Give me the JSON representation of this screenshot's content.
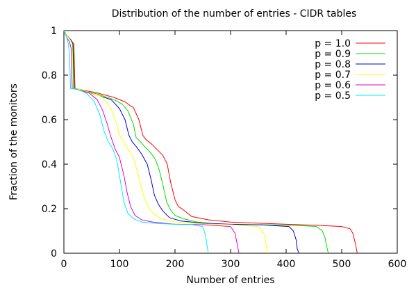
{
  "chart_data": {
    "type": "line",
    "title": "Distribution of the number of entries - CIDR tables",
    "xlabel": "Number of entries",
    "ylabel": "Fraction of the monitors",
    "xlim": [
      0,
      600
    ],
    "ylim": [
      0,
      1
    ],
    "xticks": [
      0,
      100,
      200,
      300,
      400,
      500,
      600
    ],
    "yticks": [
      0,
      0.2,
      0.4,
      0.6,
      0.8,
      1
    ],
    "xtick_labels": [
      "0",
      "100",
      "200",
      "300",
      "400",
      "500",
      "600"
    ],
    "ytick_labels": [
      "0",
      "0.2",
      "0.4",
      "0.6",
      "0.8",
      "1"
    ],
    "grid": false,
    "legend_position": "top-right",
    "series": [
      {
        "name": "p = 1.0",
        "color": "#ff0000",
        "x": [
          0,
          5,
          12,
          18,
          20,
          30,
          60,
          90,
          110,
          118,
          125,
          135,
          142,
          148,
          158,
          168,
          178,
          186,
          192,
          200,
          206,
          215,
          230,
          260,
          300,
          400,
          460,
          500,
          515,
          520,
          525,
          528
        ],
        "y": [
          1.0,
          0.98,
          0.96,
          0.94,
          0.74,
          0.735,
          0.72,
          0.7,
          0.68,
          0.665,
          0.655,
          0.6,
          0.53,
          0.51,
          0.49,
          0.465,
          0.44,
          0.4,
          0.32,
          0.24,
          0.21,
          0.195,
          0.165,
          0.15,
          0.14,
          0.13,
          0.125,
          0.12,
          0.11,
          0.09,
          0.04,
          0.0
        ]
      },
      {
        "name": "p = 0.9",
        "color": "#00dd00",
        "x": [
          0,
          5,
          12,
          17,
          19,
          30,
          60,
          90,
          105,
          115,
          125,
          130,
          138,
          145,
          155,
          165,
          172,
          178,
          185,
          193,
          200,
          215,
          240,
          280,
          350,
          420,
          455,
          465,
          470,
          473,
          476
        ],
        "y": [
          1.0,
          0.98,
          0.96,
          0.94,
          0.74,
          0.735,
          0.715,
          0.69,
          0.67,
          0.64,
          0.58,
          0.52,
          0.5,
          0.48,
          0.455,
          0.42,
          0.37,
          0.31,
          0.23,
          0.19,
          0.17,
          0.155,
          0.14,
          0.13,
          0.128,
          0.125,
          0.12,
          0.1,
          0.07,
          0.03,
          0.0
        ]
      },
      {
        "name": "p = 0.8",
        "color": "#0000cc",
        "x": [
          0,
          5,
          12,
          16,
          18,
          30,
          60,
          85,
          100,
          110,
          117,
          123,
          130,
          140,
          150,
          157,
          163,
          170,
          178,
          190,
          210,
          250,
          300,
          360,
          405,
          413,
          418,
          420,
          423
        ],
        "y": [
          1.0,
          0.98,
          0.96,
          0.94,
          0.74,
          0.735,
          0.71,
          0.69,
          0.65,
          0.6,
          0.53,
          0.5,
          0.48,
          0.445,
          0.4,
          0.33,
          0.26,
          0.22,
          0.19,
          0.16,
          0.145,
          0.135,
          0.13,
          0.127,
          0.12,
          0.1,
          0.06,
          0.02,
          0.0
        ]
      },
      {
        "name": "p = 0.7",
        "color": "#ffff00",
        "x": [
          0,
          5,
          11,
          15,
          17,
          30,
          50,
          70,
          85,
          95,
          100,
          108,
          115,
          125,
          133,
          140,
          146,
          152,
          160,
          175,
          200,
          250,
          300,
          350,
          360,
          364,
          367
        ],
        "y": [
          1.0,
          0.98,
          0.96,
          0.94,
          0.74,
          0.735,
          0.72,
          0.7,
          0.65,
          0.58,
          0.53,
          0.5,
          0.47,
          0.43,
          0.36,
          0.29,
          0.24,
          0.21,
          0.18,
          0.155,
          0.14,
          0.132,
          0.128,
          0.12,
          0.09,
          0.04,
          0.0
        ]
      },
      {
        "name": "p = 0.6",
        "color": "#dd00dd",
        "x": [
          0,
          5,
          10,
          13,
          15,
          25,
          45,
          60,
          70,
          78,
          85,
          92,
          100,
          108,
          114,
          120,
          128,
          140,
          160,
          200,
          250,
          300,
          308,
          312,
          315
        ],
        "y": [
          1.0,
          0.97,
          0.95,
          0.92,
          0.74,
          0.735,
          0.72,
          0.69,
          0.64,
          0.58,
          0.52,
          0.47,
          0.43,
          0.35,
          0.27,
          0.21,
          0.17,
          0.15,
          0.14,
          0.13,
          0.128,
          0.12,
          0.09,
          0.04,
          0.0
        ]
      },
      {
        "name": "p = 0.5",
        "color": "#00eeee",
        "x": [
          0,
          5,
          8,
          10,
          12,
          25,
          40,
          55,
          65,
          72,
          80,
          88,
          95,
          102,
          108,
          115,
          125,
          140,
          170,
          200,
          230,
          250,
          255,
          258,
          260
        ],
        "y": [
          1.0,
          0.97,
          0.94,
          0.9,
          0.74,
          0.735,
          0.72,
          0.68,
          0.62,
          0.55,
          0.5,
          0.47,
          0.42,
          0.32,
          0.23,
          0.18,
          0.155,
          0.14,
          0.133,
          0.13,
          0.128,
          0.12,
          0.08,
          0.03,
          0.0
        ]
      }
    ]
  }
}
